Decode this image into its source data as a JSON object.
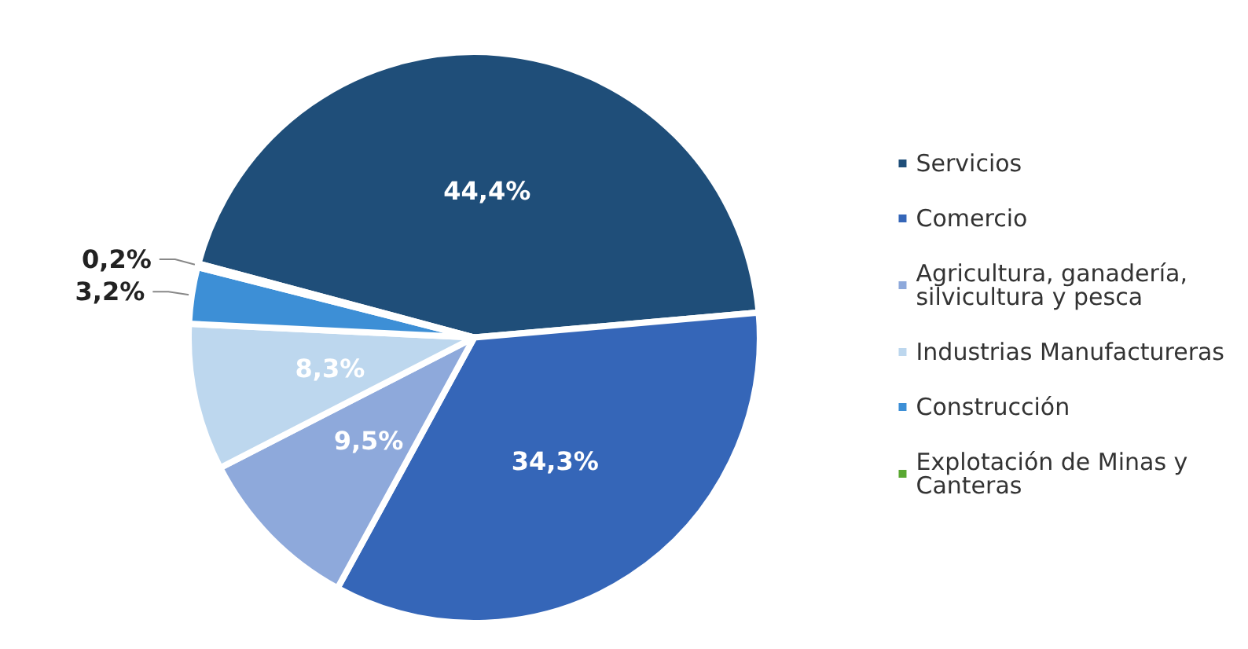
{
  "chart_data": {
    "type": "pie",
    "categories": [
      "Servicios",
      "Comercio",
      "Agricultura, ganadería, silvicultura y pesca",
      "Industrias Manufactureras",
      "Construcción",
      "Explotación de Minas y Canteras"
    ],
    "values": [
      44.4,
      34.3,
      9.5,
      8.3,
      3.2,
      0.2
    ],
    "value_labels": [
      "44,4%",
      "34,3%",
      "9,5%",
      "8,3%",
      "3,2%",
      "0,2%"
    ],
    "colors": [
      "#1f4e79",
      "#3566b8",
      "#8ea9db",
      "#bdd7ee",
      "#3d8fd6",
      "#5aa832"
    ],
    "legend": "right"
  }
}
